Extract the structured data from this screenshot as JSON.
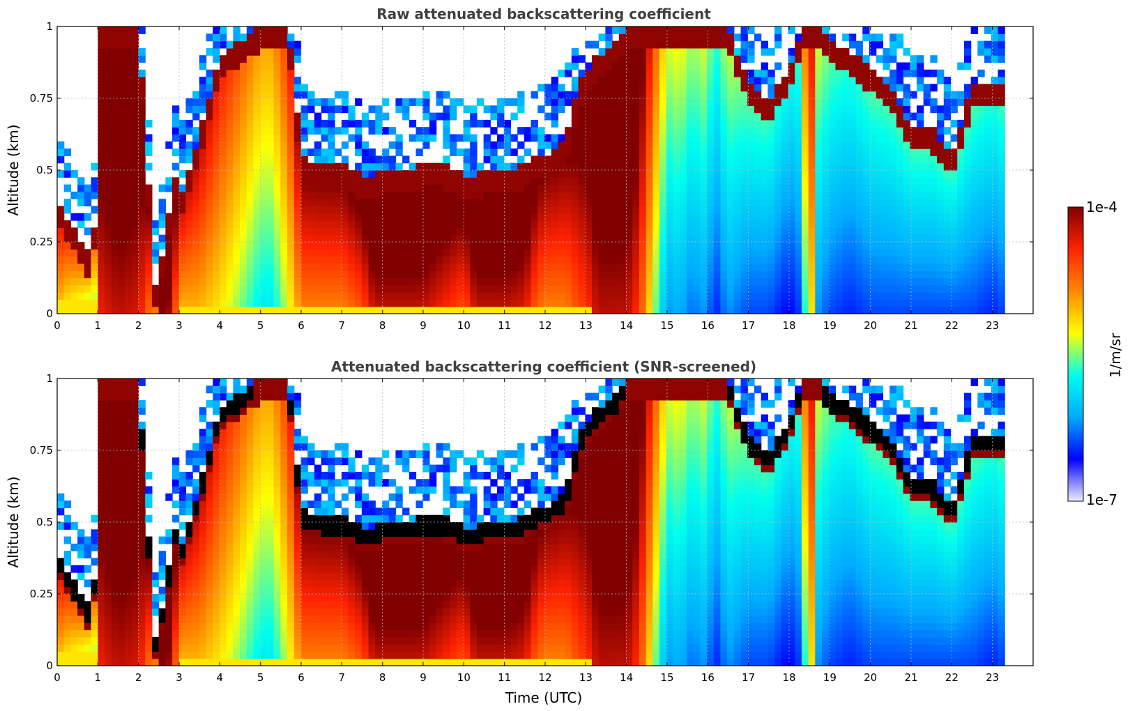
{
  "chart_data": [
    {
      "type": "heatmap",
      "title": "Raw attenuated backscattering coefficient",
      "ylabel": "Altitude (km)",
      "xlabel": "",
      "xlim": [
        0,
        24
      ],
      "ylim": [
        0,
        1
      ],
      "x_ticks": [
        "0",
        "1",
        "2",
        "3",
        "4",
        "5",
        "6",
        "7",
        "8",
        "9",
        "10",
        "11",
        "12",
        "13",
        "14",
        "15",
        "16",
        "17",
        "18",
        "19",
        "20",
        "21",
        "22",
        "23"
      ],
      "y_ticks": [
        "0",
        "0.25",
        "0.5",
        "0.75",
        "1"
      ],
      "grid": true,
      "data_end_time": 23.3,
      "colormap": "jet",
      "log10_color_range": [
        -7,
        -4
      ],
      "screened": false
    },
    {
      "type": "heatmap",
      "title": "Attenuated backscattering coefficient (SNR-screened)",
      "ylabel": "Altitude (km)",
      "xlabel": "Time (UTC)",
      "xlim": [
        0,
        24
      ],
      "ylim": [
        0,
        1
      ],
      "x_ticks": [
        "0",
        "1",
        "2",
        "3",
        "4",
        "5",
        "6",
        "7",
        "8",
        "9",
        "10",
        "11",
        "12",
        "13",
        "14",
        "15",
        "16",
        "17",
        "18",
        "19",
        "20",
        "21",
        "22",
        "23"
      ],
      "y_ticks": [
        "0",
        "0.25",
        "0.5",
        "0.75",
        "1"
      ],
      "grid": true,
      "data_end_time": 23.3,
      "colormap": "jet",
      "log10_color_range": [
        -7,
        -4
      ],
      "screened": true
    }
  ],
  "colorbar": {
    "label": "1/m/sr",
    "max_label": "1e-4",
    "min_label": "1e-7",
    "colors": [
      "#eeeeff",
      "#0000ff",
      "#00aaff",
      "#00ffee",
      "#ffff00",
      "#ff8800",
      "#ff2200",
      "#800000"
    ]
  },
  "field_profile": {
    "times": [
      0,
      0.3,
      0.6,
      0.8,
      0.9,
      1.0,
      1.5,
      2.0,
      2.4,
      2.5,
      2.7,
      2.9,
      3.0,
      3.5,
      4.0,
      4.5,
      5.0,
      5.3,
      5.7,
      6.0,
      6.5,
      7.0,
      7.5,
      7.8,
      8.0,
      8.5,
      9.0,
      9.5,
      10.0,
      10.3,
      10.5,
      11.0,
      11.5,
      11.8,
      12.0,
      12.5,
      12.8,
      13.0,
      13.3,
      13.8,
      14.0,
      14.3,
      14.7,
      15.0,
      15.3,
      15.6,
      15.9,
      16.2,
      16.5,
      17.0,
      17.5,
      18.0,
      18.3,
      18.5,
      18.7,
      19.0,
      19.5,
      20.0,
      20.5,
      21.0,
      21.5,
      22.0,
      22.5,
      23.0,
      23.3
    ],
    "layer_base": [
      0.05,
      0.05,
      0.05,
      0.05,
      0.05,
      0,
      0,
      0,
      0,
      0,
      0,
      0,
      0.03,
      0.03,
      0.03,
      0.03,
      0.03,
      0.03,
      0.03,
      0.03,
      0.03,
      0.03,
      0.03,
      0.03,
      0.03,
      0.03,
      0.03,
      0.03,
      0.03,
      0.03,
      0.03,
      0.03,
      0.03,
      0.03,
      0.03,
      0.03,
      0.03,
      0.03,
      0,
      0,
      0,
      0,
      0,
      0,
      0,
      0,
      0,
      0,
      0,
      0,
      0,
      0,
      0,
      0,
      0,
      0,
      0,
      0,
      0,
      0,
      0,
      0,
      0,
      0,
      0
    ],
    "layer_height": [
      0.4,
      0.32,
      0.25,
      0.2,
      0.18,
      1.0,
      1.0,
      1.0,
      0.1,
      0.14,
      0.3,
      0.5,
      0.4,
      0.62,
      0.9,
      0.95,
      1.0,
      1.0,
      1.0,
      0.55,
      0.52,
      0.52,
      0.48,
      0.48,
      0.5,
      0.5,
      0.52,
      0.52,
      0.48,
      0.48,
      0.5,
      0.5,
      0.52,
      0.55,
      0.55,
      0.6,
      0.78,
      0.85,
      0.9,
      0.95,
      1.0,
      1.0,
      1.0,
      1.0,
      1.0,
      1.0,
      1.0,
      1.0,
      1.0,
      0.8,
      0.75,
      0.85,
      1.0,
      1.0,
      1.0,
      0.95,
      0.92,
      0.85,
      0.8,
      0.65,
      0.65,
      0.55,
      0.8,
      0.8,
      0.8
    ],
    "near_surface": [
      -5.0,
      -5.2,
      -5.3,
      -5.4,
      -5.6,
      -4.4,
      -4.2,
      -4.3,
      -5.0,
      -4.0,
      -4.0,
      -4.6,
      -5.0,
      -5.0,
      -5.2,
      -5.5,
      -5.8,
      -5.8,
      -5.3,
      -4.8,
      -4.8,
      -4.8,
      -4.6,
      -4.2,
      -4.2,
      -4.2,
      -4.2,
      -4.4,
      -4.6,
      -4.2,
      -4.2,
      -4.2,
      -4.3,
      -4.7,
      -4.8,
      -4.8,
      -4.6,
      -4.5,
      -4.2,
      -4.2,
      -4.2,
      -4.5,
      -5.5,
      -6.2,
      -6.1,
      -6.3,
      -6.2,
      -6.5,
      -6.2,
      -6.4,
      -6.4,
      -6.6,
      -6.4,
      -4.8,
      -6.2,
      -6.4,
      -6.5,
      -6.4,
      -6.4,
      -6.4,
      -6.4,
      -6.4,
      -6.4,
      -6.5,
      -6.4
    ]
  }
}
